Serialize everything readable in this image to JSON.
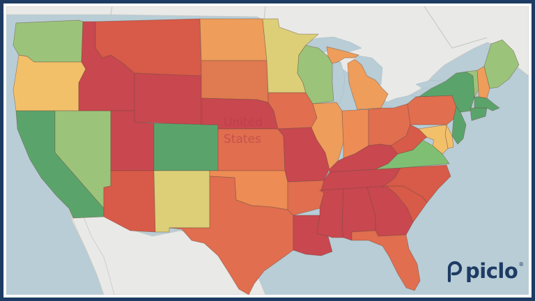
{
  "map": {
    "country_label_line1": "United",
    "country_label_line2": "States",
    "colors": {
      "water": "#b8cdd6",
      "land": "#e9e9e7",
      "dark_red": "#c9474f",
      "red": "#d85a48",
      "red_orange": "#e06e4f",
      "orange": "#ee9d5b",
      "light_orange": "#f3c06a",
      "yellow": "#dccf78",
      "light_green": "#9bc47a",
      "green": "#5aa46c"
    },
    "states": [
      {
        "name": "Washington",
        "color": "#9bc47a"
      },
      {
        "name": "Oregon",
        "color": "#f3c06a"
      },
      {
        "name": "California",
        "color": "#5aa46c"
      },
      {
        "name": "Nevada",
        "color": "#9bc47a"
      },
      {
        "name": "Idaho",
        "color": "#c9474f"
      },
      {
        "name": "Montana",
        "color": "#d85a48"
      },
      {
        "name": "Wyoming",
        "color": "#c9474f"
      },
      {
        "name": "Utah",
        "color": "#c9474f"
      },
      {
        "name": "Arizona",
        "color": "#d85a48"
      },
      {
        "name": "Colorado",
        "color": "#5aa46c"
      },
      {
        "name": "New Mexico",
        "color": "#dccf78"
      },
      {
        "name": "North Dakota",
        "color": "#ee9d5b"
      },
      {
        "name": "South Dakota",
        "color": "#e07a50"
      },
      {
        "name": "Nebraska",
        "color": "#c9474f"
      },
      {
        "name": "Kansas",
        "color": "#e06e4f"
      },
      {
        "name": "Oklahoma",
        "color": "#ee8c55"
      },
      {
        "name": "Texas",
        "color": "#e06e4f"
      },
      {
        "name": "Minnesota",
        "color": "#dccf78"
      },
      {
        "name": "Iowa",
        "color": "#e06e4f"
      },
      {
        "name": "Missouri",
        "color": "#c9474f"
      },
      {
        "name": "Arkansas",
        "color": "#e06e4f"
      },
      {
        "name": "Louisiana",
        "color": "#c9474f"
      },
      {
        "name": "Wisconsin",
        "color": "#9bc47a"
      },
      {
        "name": "Illinois",
        "color": "#ee9d5b"
      },
      {
        "name": "Michigan",
        "color": "#ee9d5b"
      },
      {
        "name": "Indiana",
        "color": "#ee8c55"
      },
      {
        "name": "Ohio",
        "color": "#e06e4f"
      },
      {
        "name": "Kentucky",
        "color": "#c9474f"
      },
      {
        "name": "Tennessee",
        "color": "#c9474f"
      },
      {
        "name": "Mississippi",
        "color": "#c9474f"
      },
      {
        "name": "Alabama",
        "color": "#c9474f"
      },
      {
        "name": "Georgia",
        "color": "#c9474f"
      },
      {
        "name": "Florida",
        "color": "#e06e4f"
      },
      {
        "name": "South Carolina",
        "color": "#d85a48"
      },
      {
        "name": "North Carolina",
        "color": "#d85a48"
      },
      {
        "name": "Virginia",
        "color": "#7fbf74"
      },
      {
        "name": "West Virginia",
        "color": "#d85a48"
      },
      {
        "name": "Pennsylvania",
        "color": "#e06e4f"
      },
      {
        "name": "New York",
        "color": "#5aa46c"
      },
      {
        "name": "Vermont",
        "color": "#9bc47a"
      },
      {
        "name": "New Hampshire",
        "color": "#ee9d5b"
      },
      {
        "name": "Maine",
        "color": "#9bc47a"
      },
      {
        "name": "Massachusetts",
        "color": "#5aa46c"
      },
      {
        "name": "Connecticut",
        "color": "#5aa46c"
      },
      {
        "name": "New Jersey",
        "color": "#5aa46c"
      },
      {
        "name": "Delaware",
        "color": "#f3c06a"
      },
      {
        "name": "Maryland",
        "color": "#f3c06a"
      }
    ]
  },
  "logo": {
    "wordmark": "piclo",
    "registered_mark": "®",
    "color": "#1d3b63"
  }
}
